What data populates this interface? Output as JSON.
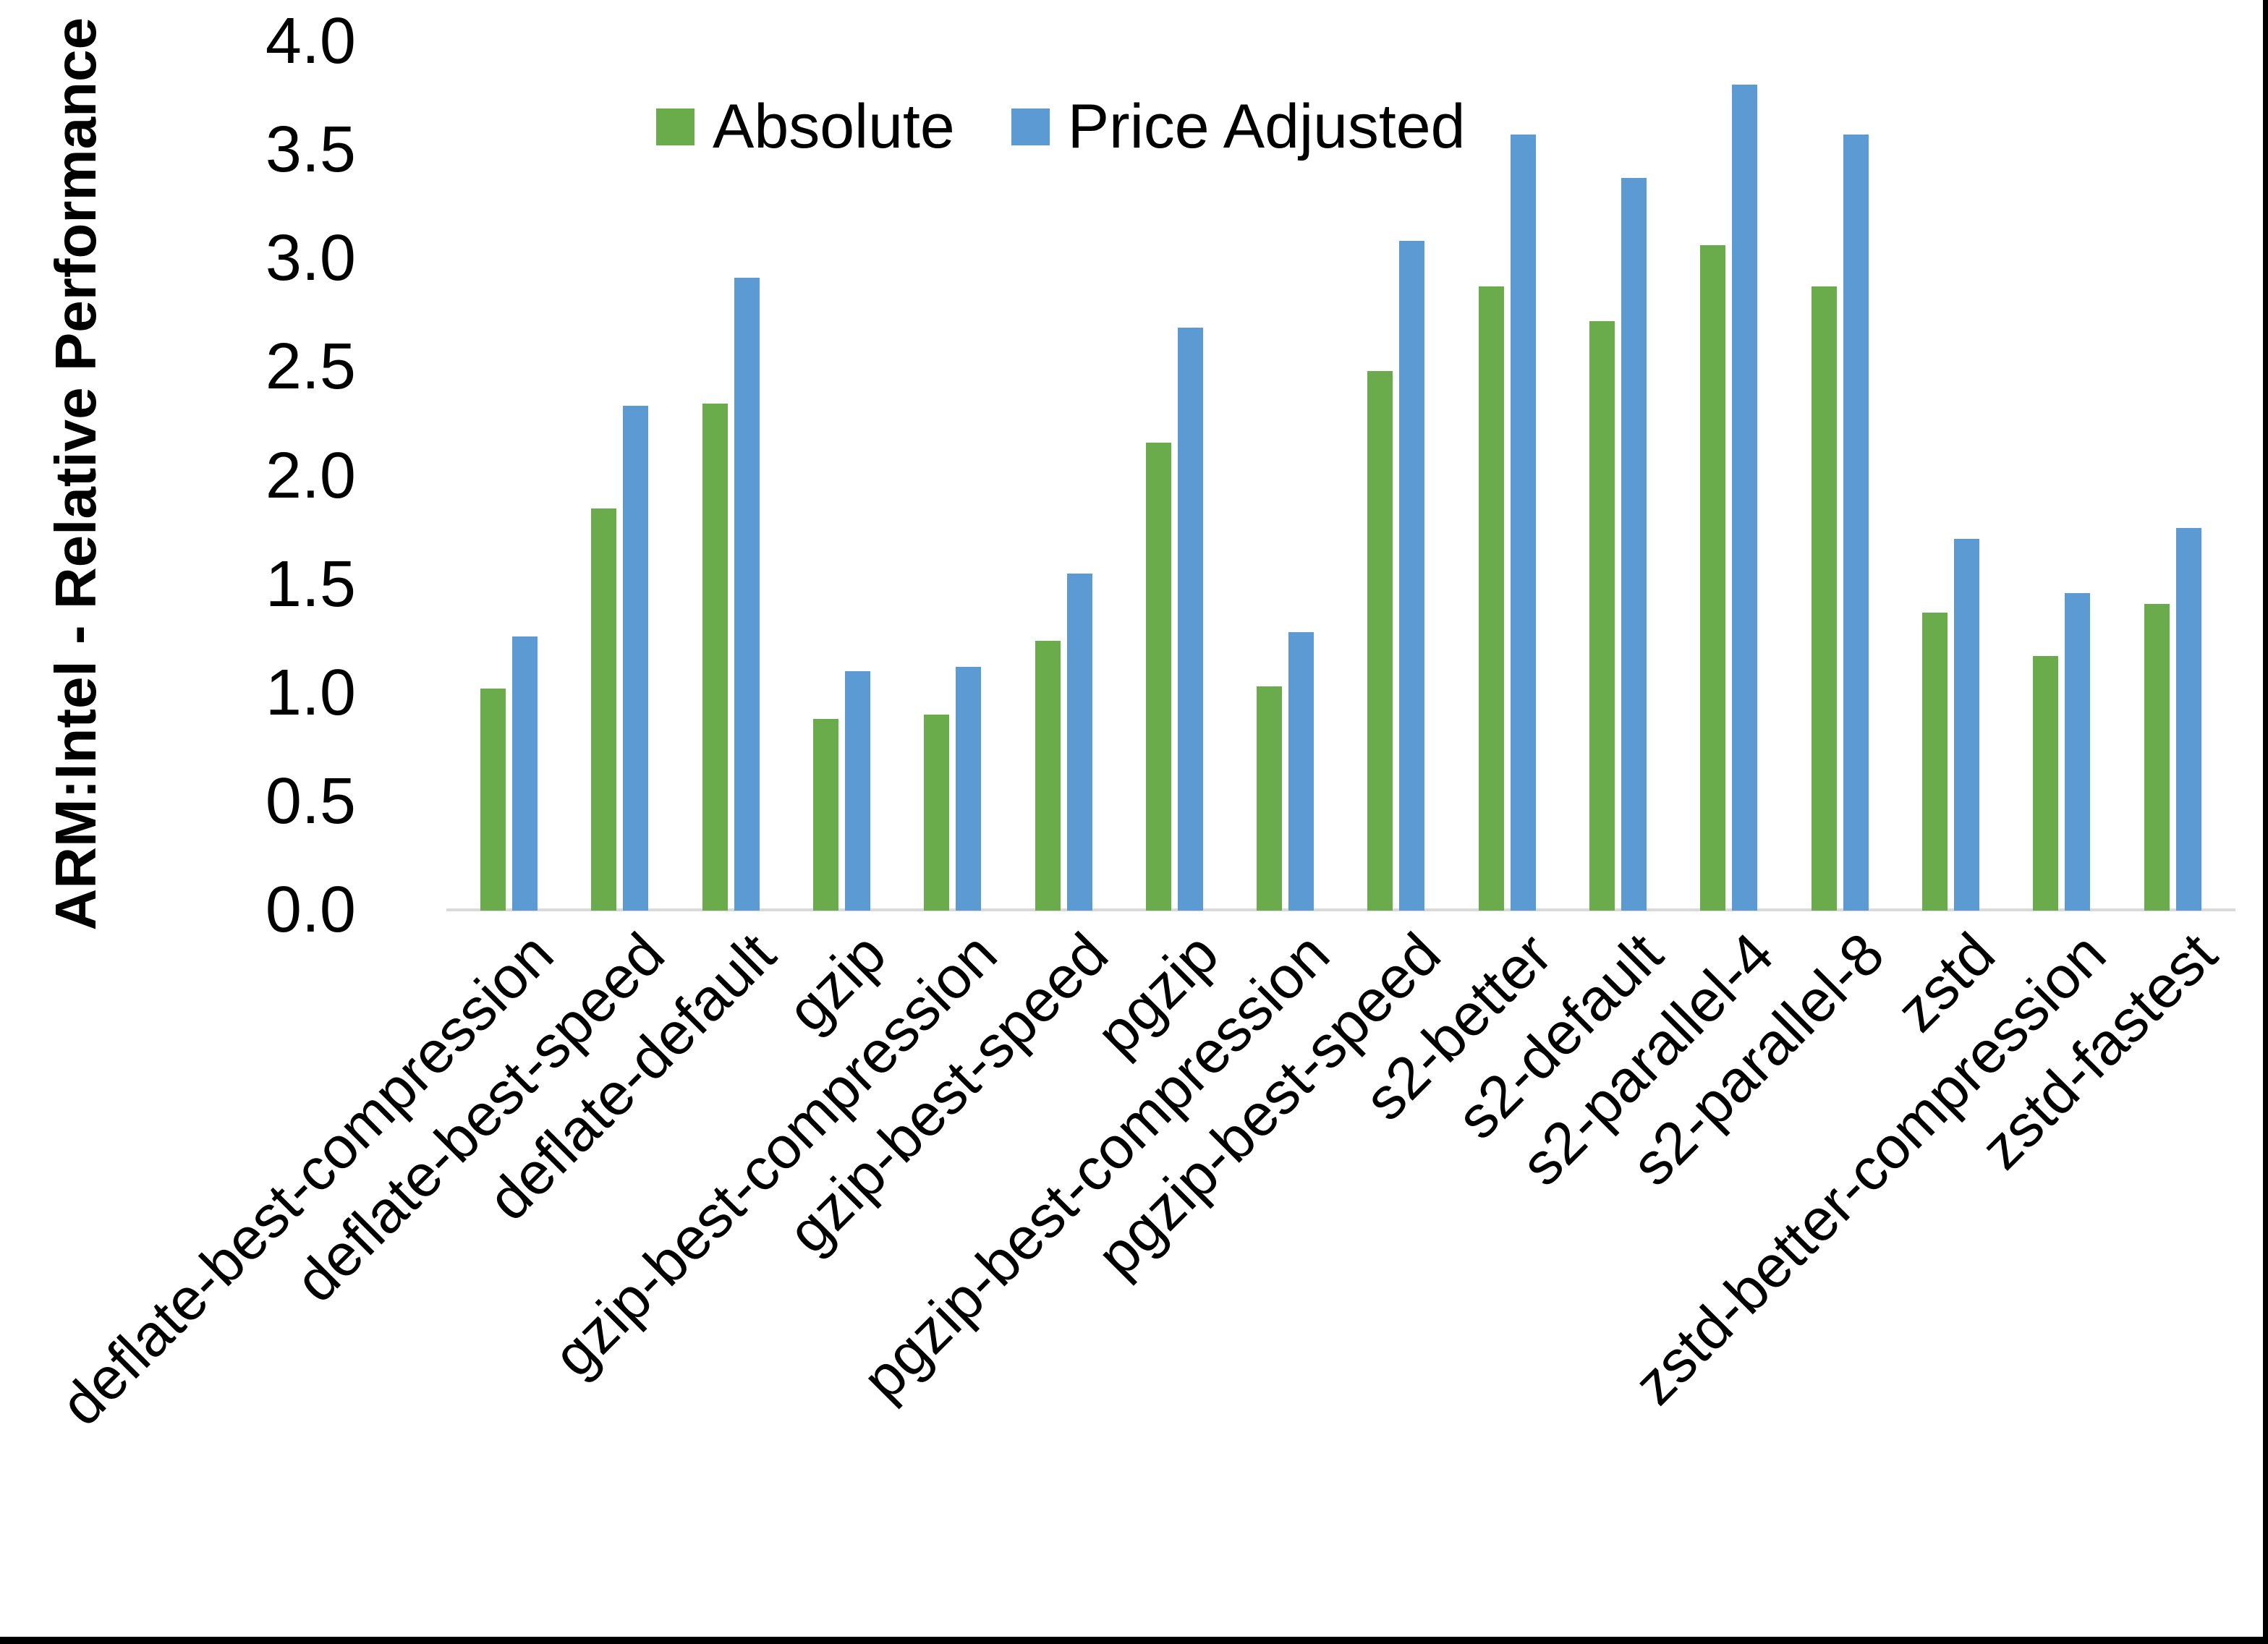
{
  "figure": {
    "background": "#ffffff",
    "frame_border_color": "#000000"
  },
  "chart_data": {
    "type": "bar",
    "title": "",
    "xlabel": "",
    "ylabel": "ARM:Intel - Relative Performance",
    "ylim": [
      0,
      4
    ],
    "ytick_step": 0.5,
    "ytick_labels": [
      "0.0",
      "0.5",
      "1.0",
      "1.5",
      "2.0",
      "2.5",
      "3.0",
      "3.5",
      "4.0"
    ],
    "grid": false,
    "legend_position": "top-center-inside",
    "axis_line_color": "#d9d9d9",
    "text_color": "#000000",
    "categories": [
      "deflate-best-compression",
      "deflate-best-speed",
      "deflate-default",
      "gzip",
      "gzip-best-compression",
      "gzip-best-speed",
      "pgzip",
      "pgzip-best-compression",
      "pgzip-best-speed",
      "s2-better",
      "s2-default",
      "s2-parallel-4",
      "s2-parallel-8",
      "zstd",
      "zstd-better-compression",
      "zstd-fastest"
    ],
    "series": [
      {
        "name": "Absolute",
        "color": "#6aab4c",
        "values": [
          1.02,
          1.85,
          2.33,
          0.88,
          0.9,
          1.24,
          2.15,
          1.03,
          2.48,
          2.87,
          2.71,
          3.06,
          2.87,
          1.37,
          1.17,
          1.41
        ]
      },
      {
        "name": "Price Adjusted",
        "color": "#5b9ad2",
        "values": [
          1.26,
          2.32,
          2.91,
          1.1,
          1.12,
          1.55,
          2.68,
          1.28,
          3.08,
          3.57,
          3.37,
          3.8,
          3.57,
          1.71,
          1.46,
          1.76
        ]
      }
    ]
  }
}
